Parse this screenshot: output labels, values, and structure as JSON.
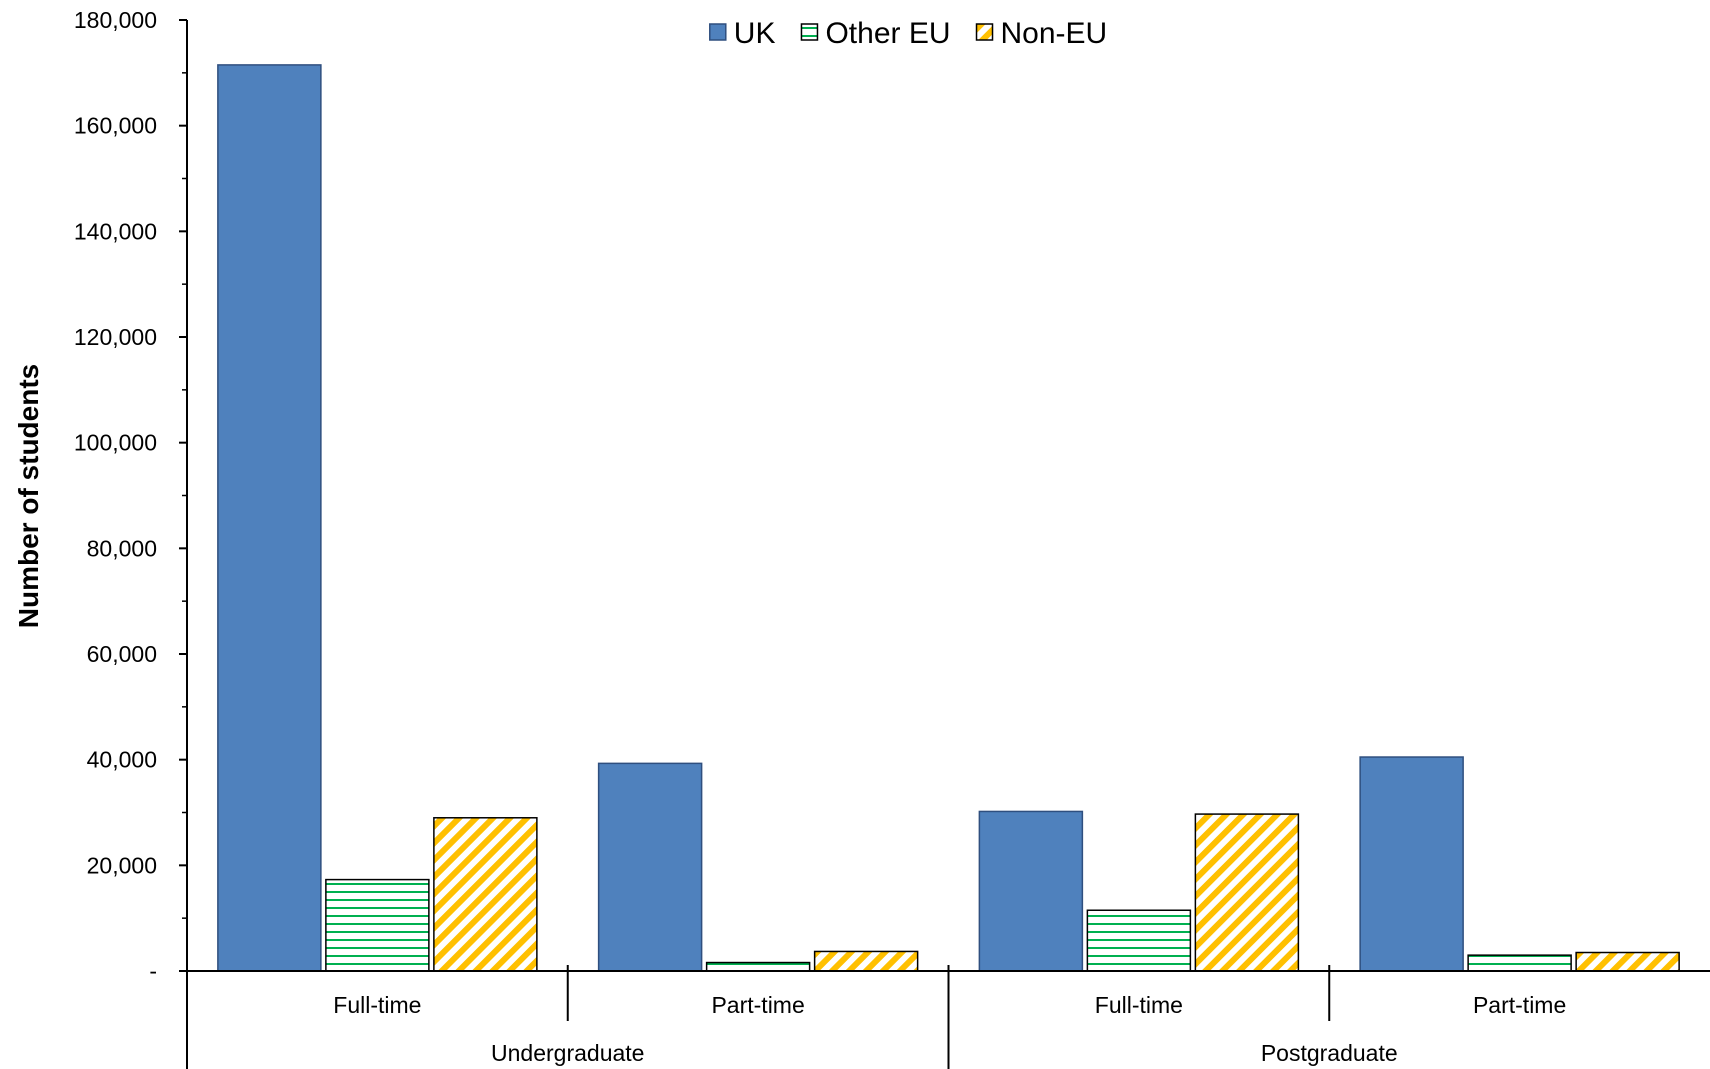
{
  "chart_data": {
    "type": "bar",
    "title": "",
    "xlabel": "",
    "ylabel": "Number of students",
    "ylim": [
      0,
      180000
    ],
    "y_ticks": [
      0,
      20000,
      40000,
      60000,
      80000,
      100000,
      120000,
      140000,
      160000,
      180000
    ],
    "y_tick_labels": [
      "-",
      "20,000",
      "40,000",
      "60,000",
      "80,000",
      "100,000",
      "120,000",
      "140,000",
      "160,000",
      "180,000"
    ],
    "categories": [
      "Full-time",
      "Part-time",
      "Full-time",
      "Part-time"
    ],
    "groups": [
      {
        "label": "Undergraduate",
        "span": [
          0,
          1
        ]
      },
      {
        "label": "Postgraduate",
        "span": [
          2,
          3
        ]
      }
    ],
    "legend": {
      "position": "top-center"
    },
    "grid": false,
    "series": [
      {
        "name": "UK",
        "pattern": "solid",
        "color": "#4F81BD",
        "values": [
          171500,
          39300,
          30200,
          40500
        ]
      },
      {
        "name": "Other EU",
        "pattern": "horizontal-lines",
        "color": "#00B050",
        "values": [
          17300,
          1600,
          11500,
          3000
        ]
      },
      {
        "name": "Non-EU",
        "pattern": "diagonal-lines",
        "color": "#FFC000",
        "values": [
          29000,
          3700,
          29700,
          3500
        ]
      }
    ]
  }
}
